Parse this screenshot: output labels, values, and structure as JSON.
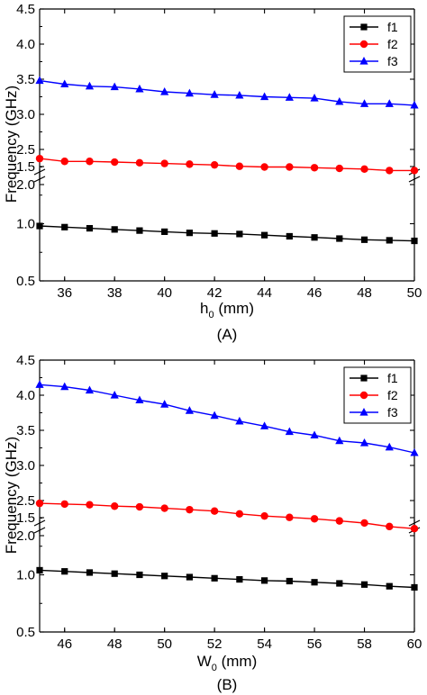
{
  "charts": [
    {
      "xtitle_main": "h",
      "xtitle_sub": "0",
      "xtitle_unit": " (mm)",
      "caption": "(A)"
    },
    {
      "xtitle_main": "W",
      "xtitle_sub": "0",
      "xtitle_unit": " (mm)",
      "caption": "(B)"
    }
  ],
  "chart_data": [
    {
      "type": "line",
      "title": "",
      "xlabel": "h0 (mm)",
      "ylabel": "Frequency (GHz)",
      "xlim": [
        35,
        50
      ],
      "ylim": [
        0.5,
        4.5
      ],
      "y_axis_break": [
        1.5,
        2.0
      ],
      "xticks": [
        "36",
        "38",
        "40",
        "42",
        "44",
        "46",
        "48",
        "50"
      ],
      "yticks": [
        "0.5",
        "1.0",
        "1.5",
        "2.0",
        "2.5",
        "3.0",
        "3.5",
        "4.0",
        "4.5"
      ],
      "grid": false,
      "legend_position": "top-right",
      "x": [
        35,
        36,
        37,
        38,
        39,
        40,
        41,
        42,
        43,
        44,
        45,
        46,
        47,
        48,
        49,
        50
      ],
      "series": [
        {
          "name": "f1",
          "color": "#000000",
          "marker": "square",
          "values": [
            0.98,
            0.97,
            0.96,
            0.95,
            0.94,
            0.93,
            0.92,
            0.915,
            0.91,
            0.9,
            0.89,
            0.88,
            0.87,
            0.86,
            0.855,
            0.85
          ]
        },
        {
          "name": "f2",
          "color": "#ff0000",
          "marker": "circle",
          "values": [
            2.37,
            2.33,
            2.33,
            2.32,
            2.31,
            2.3,
            2.29,
            2.28,
            2.26,
            2.25,
            2.25,
            2.24,
            2.23,
            2.22,
            2.2,
            2.2
          ]
        },
        {
          "name": "f3",
          "color": "#0000ff",
          "marker": "triangle",
          "values": [
            3.48,
            3.43,
            3.4,
            3.39,
            3.36,
            3.32,
            3.3,
            3.28,
            3.27,
            3.25,
            3.24,
            3.23,
            3.18,
            3.15,
            3.15,
            3.13
          ]
        }
      ]
    },
    {
      "type": "line",
      "title": "",
      "xlabel": "W0 (mm)",
      "ylabel": "Frequency (GHz)",
      "xlim": [
        45,
        60
      ],
      "ylim": [
        0.5,
        4.5
      ],
      "y_axis_break": [
        1.5,
        2.0
      ],
      "xticks": [
        "46",
        "48",
        "50",
        "52",
        "54",
        "56",
        "58",
        "60"
      ],
      "yticks": [
        "0.5",
        "1.0",
        "1.5",
        "2.0",
        "2.5",
        "3.0",
        "3.5",
        "4.0",
        "4.5"
      ],
      "grid": false,
      "legend_position": "top-right",
      "x": [
        45,
        46,
        47,
        48,
        49,
        50,
        51,
        52,
        53,
        54,
        55,
        56,
        57,
        58,
        59,
        60
      ],
      "series": [
        {
          "name": "f1",
          "color": "#000000",
          "marker": "square",
          "values": [
            1.04,
            1.03,
            1.02,
            1.01,
            1.0,
            0.99,
            0.98,
            0.97,
            0.96,
            0.95,
            0.945,
            0.935,
            0.925,
            0.915,
            0.9,
            0.89
          ]
        },
        {
          "name": "f2",
          "color": "#ff0000",
          "marker": "circle",
          "values": [
            2.46,
            2.45,
            2.44,
            2.42,
            2.41,
            2.39,
            2.37,
            2.35,
            2.31,
            2.28,
            2.26,
            2.24,
            2.21,
            2.18,
            2.13,
            2.1
          ]
        },
        {
          "name": "f3",
          "color": "#0000ff",
          "marker": "triangle",
          "values": [
            4.15,
            4.12,
            4.07,
            4.0,
            3.93,
            3.87,
            3.78,
            3.71,
            3.63,
            3.56,
            3.48,
            3.43,
            3.35,
            3.32,
            3.26,
            3.18
          ]
        }
      ]
    }
  ]
}
